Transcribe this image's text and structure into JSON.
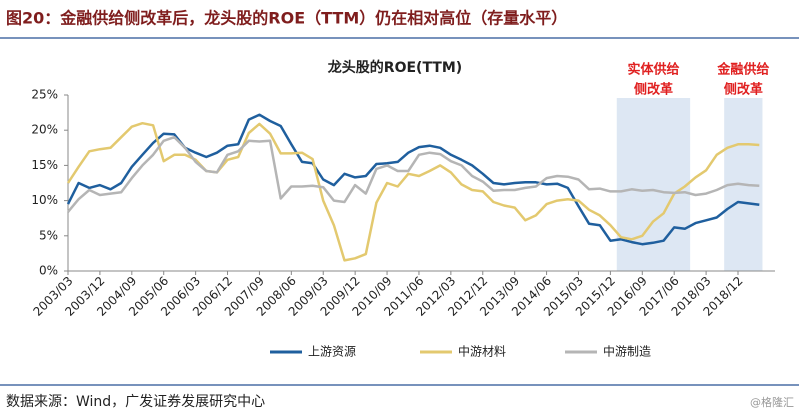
{
  "header": {
    "title": "图20：金融供给侧改革后，龙头股的ROE（TTM）仍在相对高位（存量水平）"
  },
  "footer": {
    "source": "数据来源：Wind，广发证券发展研究中心",
    "watermark": "@格隆汇"
  },
  "chart_data": {
    "type": "line",
    "title": "龙头股的ROE(TTM)",
    "categories": [
      "2003/03",
      null,
      null,
      "2003/12",
      null,
      null,
      "2004/09",
      null,
      null,
      "2005/06",
      null,
      null,
      "2006/03",
      null,
      null,
      "2006/12",
      null,
      null,
      "2007/09",
      null,
      null,
      "2008/06",
      null,
      null,
      "2009/03",
      null,
      null,
      "2009/12",
      null,
      null,
      "2010/09",
      null,
      null,
      "2011/06",
      null,
      null,
      "2012/03",
      null,
      null,
      "2012/12",
      null,
      null,
      "2013/09",
      null,
      null,
      "2014/06",
      null,
      null,
      "2015/03",
      null,
      null,
      "2015/12",
      null,
      null,
      "2016/09",
      null,
      null,
      "2017/06",
      null,
      null,
      "2018/03",
      null,
      null,
      "2018/12",
      null,
      null
    ],
    "series": [
      {
        "name": "上游资源",
        "color": "#1f5f9e",
        "values": [
          9.5,
          12.5,
          11.8,
          12.2,
          11.6,
          12.5,
          14.8,
          16.5,
          18.2,
          19.5,
          19.4,
          17.5,
          16.8,
          16.2,
          16.8,
          17.8,
          18.0,
          21.5,
          22.2,
          21.3,
          20.6,
          18.0,
          15.5,
          15.3,
          13.0,
          12.2,
          13.8,
          13.3,
          13.5,
          15.2,
          15.3,
          15.5,
          16.8,
          17.6,
          17.8,
          17.5,
          16.5,
          15.8,
          15.0,
          13.8,
          12.5,
          12.3,
          12.5,
          12.6,
          12.6,
          12.3,
          12.4,
          11.8,
          9.2,
          6.7,
          6.5,
          4.3,
          4.5,
          4.1,
          3.8,
          4.0,
          4.3,
          6.2,
          6.0,
          6.8,
          7.2,
          7.6,
          8.8,
          9.8,
          9.6,
          9.4
        ]
      },
      {
        "name": "中游材料",
        "color": "#e3c96f",
        "values": [
          12.5,
          14.8,
          17.0,
          17.3,
          17.5,
          19.0,
          20.5,
          21.0,
          20.7,
          15.6,
          16.5,
          16.5,
          15.8,
          14.2,
          14.0,
          15.8,
          16.2,
          19.6,
          20.9,
          19.5,
          16.7,
          16.7,
          16.8,
          15.9,
          10.0,
          6.5,
          1.5,
          1.8,
          2.4,
          9.7,
          12.5,
          12.0,
          13.8,
          13.5,
          14.2,
          15.0,
          14.0,
          12.3,
          11.5,
          11.3,
          9.8,
          9.3,
          9.0,
          7.2,
          7.9,
          9.5,
          10.0,
          10.2,
          10.0,
          8.7,
          7.9,
          6.5,
          4.8,
          4.5,
          5.0,
          7.0,
          8.2,
          11.0,
          12.0,
          13.3,
          14.3,
          16.5,
          17.5,
          18.0,
          18.0,
          17.9
        ]
      },
      {
        "name": "中游制造",
        "color": "#b5b5b5",
        "values": [
          8.4,
          10.2,
          11.5,
          10.8,
          11.0,
          11.2,
          13.2,
          15.0,
          16.5,
          18.5,
          19.0,
          17.5,
          15.5,
          14.2,
          14.0,
          16.5,
          17.0,
          18.5,
          18.4,
          18.5,
          10.3,
          12.0,
          12.0,
          12.1,
          11.9,
          10.0,
          9.8,
          12.2,
          11.0,
          14.5,
          15.0,
          14.2,
          14.2,
          16.5,
          16.8,
          16.6,
          15.6,
          15.0,
          13.5,
          12.7,
          11.4,
          11.5,
          11.5,
          11.8,
          12.0,
          13.2,
          13.5,
          13.4,
          13.0,
          11.6,
          11.7,
          11.3,
          11.3,
          11.6,
          11.4,
          11.5,
          11.2,
          11.1,
          11.2,
          10.8,
          11.0,
          11.5,
          12.2,
          12.4,
          12.2,
          12.1
        ]
      }
    ],
    "ylim": [
      0,
      25
    ],
    "yticks": [
      {
        "value": 0,
        "label": "0%"
      },
      {
        "value": 5,
        "label": "5%"
      },
      {
        "value": 10,
        "label": "10%"
      },
      {
        "value": 15,
        "label": "15%"
      },
      {
        "value": 20,
        "label": "20%"
      },
      {
        "value": 25,
        "label": "25%"
      }
    ],
    "annotations": [
      {
        "text": [
          "实体供给",
          "侧改革"
        ]
      },
      {
        "text": [
          "金融供给",
          "侧改革"
        ]
      }
    ]
  }
}
